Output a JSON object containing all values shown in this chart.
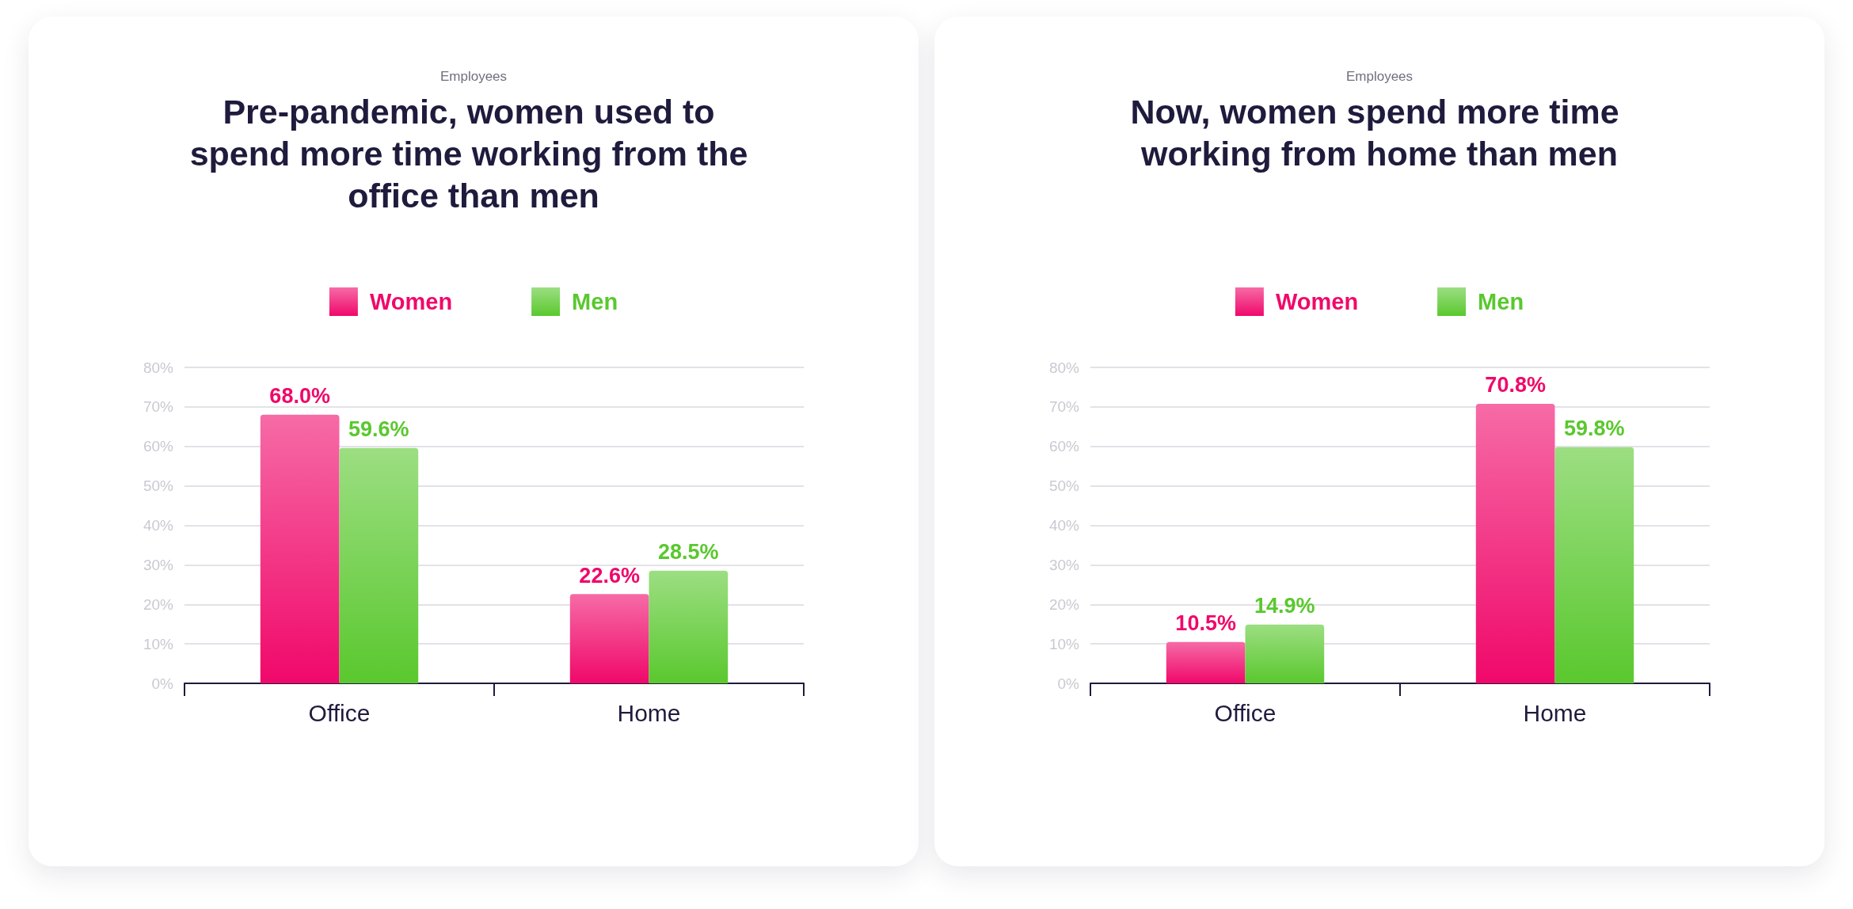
{
  "chart_data": [
    {
      "type": "bar",
      "subtitle": "Employees",
      "title": "Pre-pandemic, women used to spend more time working from the office than men",
      "categories": [
        "Office",
        "Home"
      ],
      "series": [
        {
          "name": "Women",
          "color": "#f0086a",
          "values": [
            68.0,
            22.6
          ],
          "value_labels": [
            "68.0%",
            "22.6%"
          ]
        },
        {
          "name": "Men",
          "color": "#5ac82e",
          "values": [
            59.6,
            28.5
          ],
          "value_labels": [
            "59.6%",
            "28.5%"
          ]
        }
      ],
      "ylim": [
        0,
        80
      ],
      "yticks": [
        {
          "value": 0,
          "label": "0%"
        },
        {
          "value": 10,
          "label": "10%"
        },
        {
          "value": 20,
          "label": "20%"
        },
        {
          "value": 30,
          "label": "30%"
        },
        {
          "value": 40,
          "label": "40%"
        },
        {
          "value": 50,
          "label": "50%"
        },
        {
          "value": 60,
          "label": "60%"
        },
        {
          "value": 70,
          "label": "70%"
        },
        {
          "value": 80,
          "label": "80%"
        }
      ],
      "grid": "y",
      "legend": "top"
    },
    {
      "type": "bar",
      "subtitle": "Employees",
      "title": "Now, women spend more time working from home than men",
      "categories": [
        "Office",
        "Home"
      ],
      "series": [
        {
          "name": "Women",
          "color": "#f0086a",
          "values": [
            10.5,
            70.8
          ],
          "value_labels": [
            "10.5%",
            "70.8%"
          ]
        },
        {
          "name": "Men",
          "color": "#5ac82e",
          "values": [
            14.9,
            59.8
          ],
          "value_labels": [
            "14.9%",
            "59.8%"
          ]
        }
      ],
      "ylim": [
        0,
        80
      ],
      "yticks": [
        {
          "value": 0,
          "label": "0%"
        },
        {
          "value": 10,
          "label": "10%"
        },
        {
          "value": 20,
          "label": "20%"
        },
        {
          "value": 30,
          "label": "30%"
        },
        {
          "value": 40,
          "label": "40%"
        },
        {
          "value": 50,
          "label": "50%"
        },
        {
          "value": 60,
          "label": "60%"
        },
        {
          "value": 70,
          "label": "70%"
        },
        {
          "value": 80,
          "label": "80%"
        }
      ],
      "grid": "y",
      "legend": "top"
    }
  ]
}
